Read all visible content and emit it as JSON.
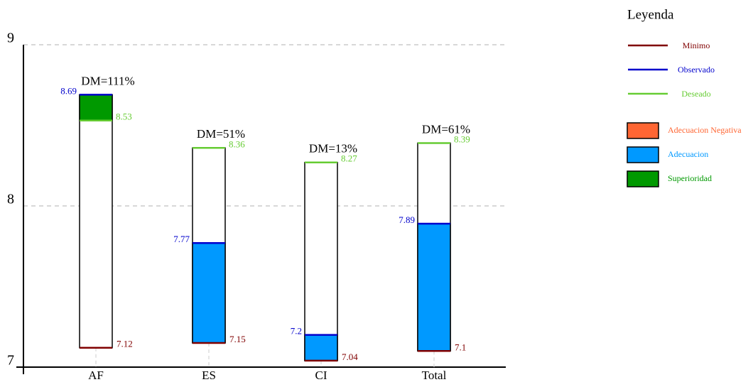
{
  "chart_data": {
    "type": "range",
    "categories": [
      "AF",
      "ES",
      "CI",
      "Total"
    ],
    "series": [
      {
        "name": "Minimo",
        "color": "#800000",
        "values": [
          7.12,
          7.15,
          7.04,
          7.1
        ]
      },
      {
        "name": "Observado",
        "color": "#0000cc",
        "values": [
          8.69,
          7.77,
          7.2,
          7.89
        ]
      },
      {
        "name": "Deseado",
        "color": "#66cc33",
        "values": [
          8.53,
          8.36,
          8.27,
          8.39
        ]
      }
    ],
    "annotations": [
      "DM=111%",
      "DM=51%",
      "DM=13%",
      "DM=61%"
    ],
    "legend_title": "Leyenda",
    "fill_legend": [
      {
        "name": "Adecuacion Negativa",
        "color": "#ff6633"
      },
      {
        "name": "Adecuacion",
        "color": "#0099ff"
      },
      {
        "name": "Superioridad",
        "color": "#009900"
      }
    ],
    "ylim": [
      7,
      9
    ],
    "yticks": [
      7,
      8,
      9
    ],
    "grid": true
  }
}
